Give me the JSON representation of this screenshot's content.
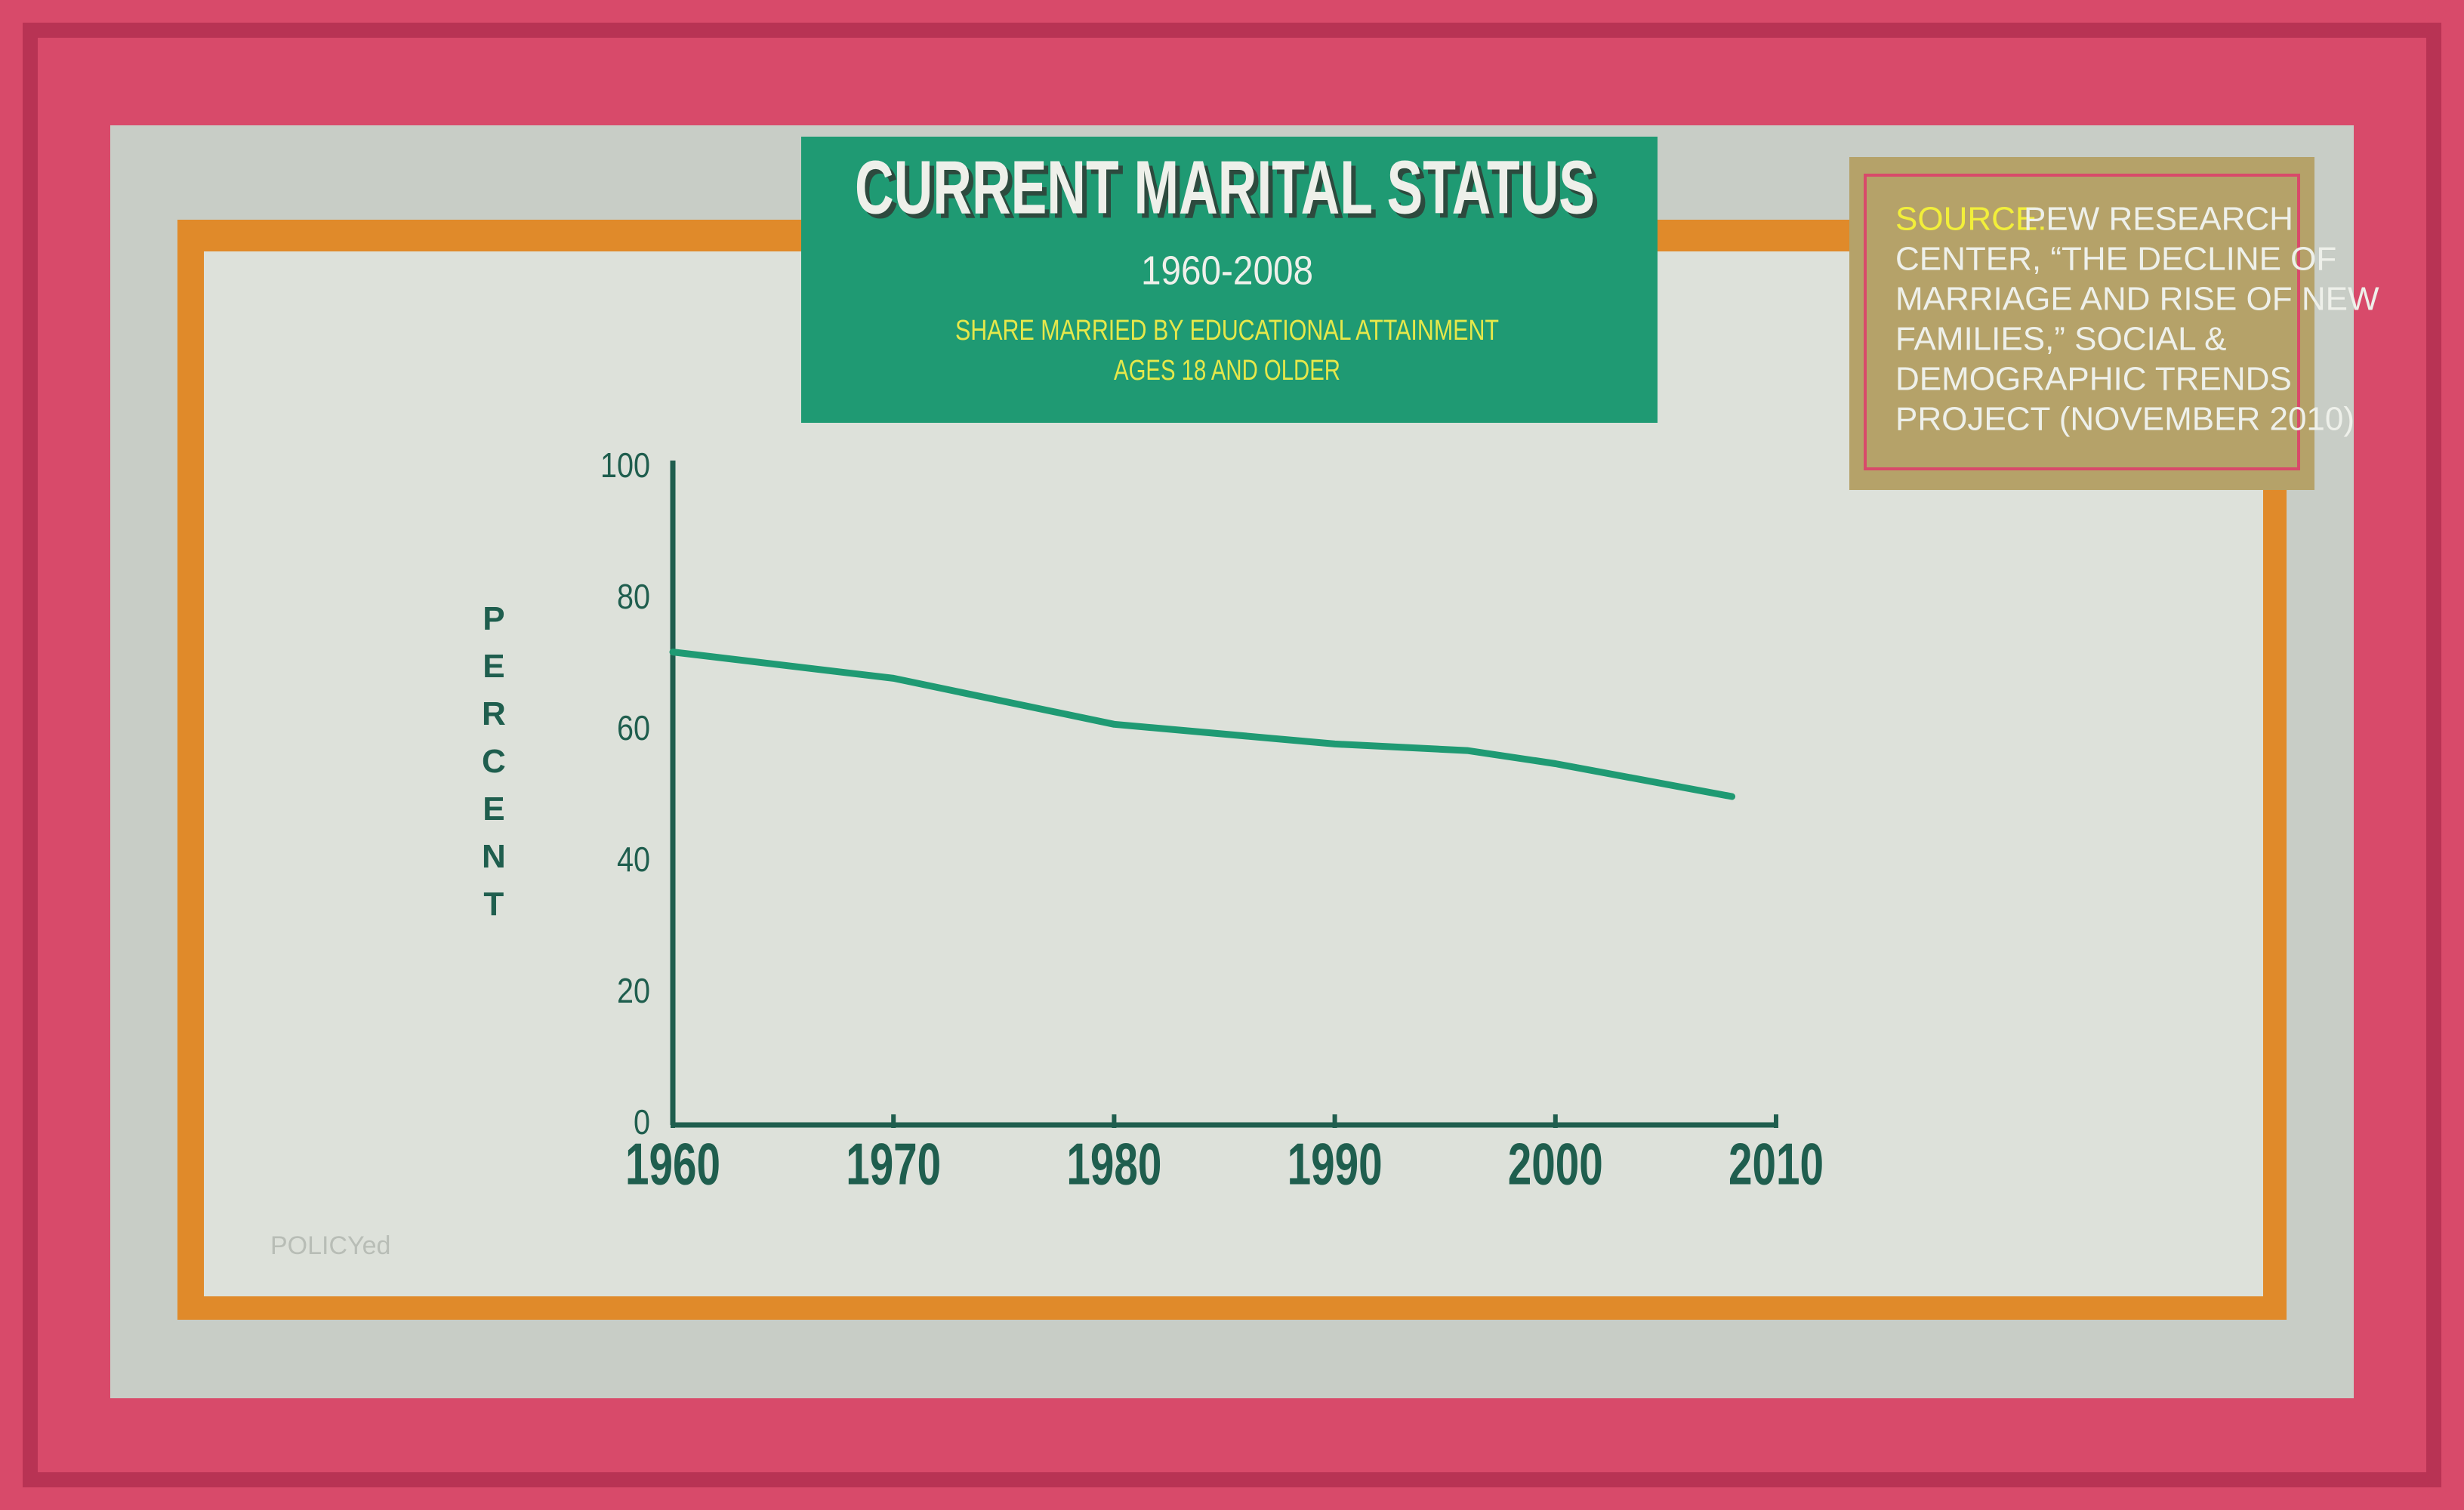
{
  "chart_data": {
    "type": "line",
    "title": "CURRENT MARITAL STATUS",
    "subtitle": "1960-2008",
    "description": [
      "SHARE MARRIED BY EDUCATIONAL ATTAINMENT",
      "AGES 18 AND OLDER"
    ],
    "y_label": "PERCENT",
    "x": [
      1960,
      1970,
      1980,
      1990,
      1996,
      2000,
      2008
    ],
    "values": [
      72,
      68,
      61,
      58,
      57,
      55,
      50
    ],
    "color": "#1f9a73",
    "xlim": [
      1960,
      2010
    ],
    "xticks": [
      1960,
      1970,
      1980,
      1990,
      2000,
      2010
    ],
    "ylim": [
      0,
      100
    ],
    "yticks": [
      0,
      20,
      40,
      60,
      80,
      100
    ],
    "grid": false
  },
  "source": {
    "label": "SOURCE:",
    "lines": [
      "PEW RESEARCH",
      "CENTER, “THE DECLINE OF",
      "MARRIAGE AND RISE OF NEW",
      "FAMILIES,” SOCIAL &",
      "DEMOGRAPHIC TRENDS",
      "PROJECT (NOVEMBER 2010)"
    ]
  },
  "logo": "POLICYed"
}
